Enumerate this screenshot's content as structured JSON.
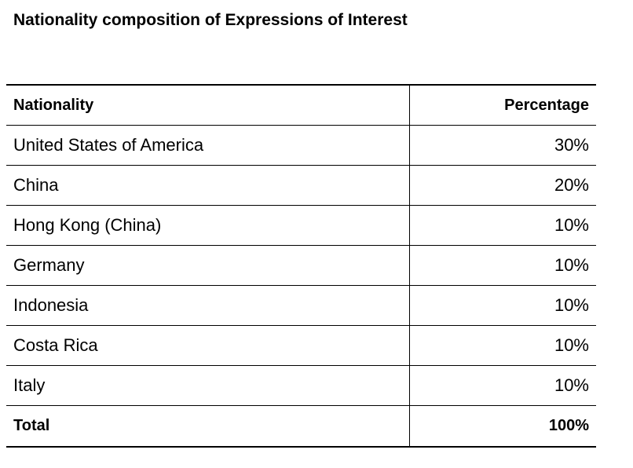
{
  "title": "Nationality composition of Expressions of Interest",
  "table": {
    "header": {
      "nationality": "Nationality",
      "percentage": "Percentage"
    },
    "rows": [
      {
        "nationality": "United States of America",
        "percentage": "30%"
      },
      {
        "nationality": "China",
        "percentage": "20%"
      },
      {
        "nationality": "Hong Kong (China)",
        "percentage": "10%"
      },
      {
        "nationality": "Germany",
        "percentage": "10%"
      },
      {
        "nationality": "Indonesia",
        "percentage": "10%"
      },
      {
        "nationality": "Costa Rica",
        "percentage": "10%"
      },
      {
        "nationality": "Italy",
        "percentage": "10%"
      }
    ],
    "total": {
      "label": "Total",
      "percentage": "100%"
    }
  }
}
